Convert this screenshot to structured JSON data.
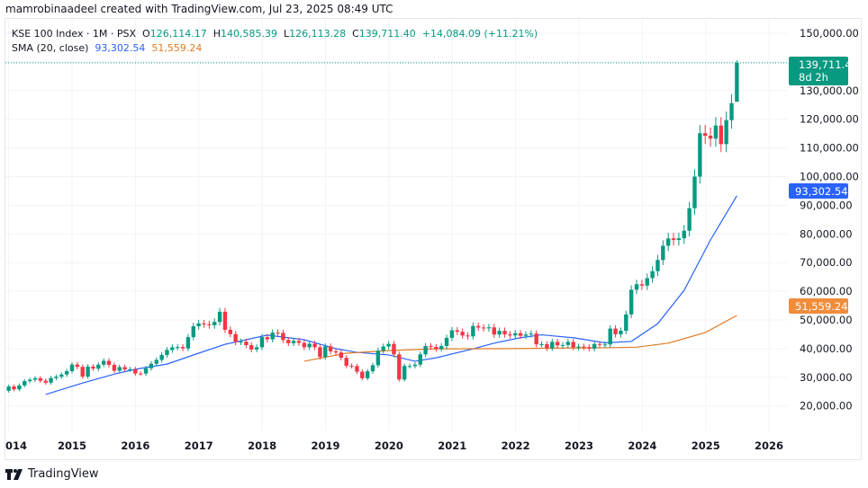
{
  "credit": "mamrobinaadeel created with TradingView.com, Jul 23, 2025 08:49 UTC",
  "legend": {
    "symbol": "KSE 100 Index · 1M · PSX",
    "o_label": "O",
    "o": "126,114.17",
    "h_label": "H",
    "h": "140,585.39",
    "l_label": "L",
    "l": "126,113.28",
    "c_label": "C",
    "c": "139,711.40",
    "change": "+14,084.09 (+11.21%)",
    "sma_label": "SMA (20, close)",
    "sma1": "93,302.54",
    "sma2": "51,559.24"
  },
  "badges": {
    "last_price": "139,711.40",
    "countdown": "8d 2h",
    "sma1": "93,302.54",
    "sma2": "51,559.24"
  },
  "logo": "TradingView",
  "colors": {
    "up": "#089981",
    "down": "#f23645",
    "sma1": "#2962ff",
    "sma2": "#e07b24",
    "grid": "#f0f3fa"
  },
  "chart_data": {
    "type": "candlestick",
    "interval": "1M",
    "start": "2014-01",
    "first_open": 25300,
    "last_candle": {
      "open": 126114.17,
      "high": 140585.39,
      "low": 126113.28,
      "close": 139711.4
    },
    "closes": [
      26784,
      25782,
      27159,
      28666,
      29143,
      29653,
      28797,
      28124,
      29727,
      30200,
      30955,
      32131,
      34444,
      33632,
      30233,
      33729,
      33011,
      34399,
      35742,
      34318,
      32288,
      33553,
      32762,
      32816,
      31313,
      31299,
      33139,
      34719,
      36061,
      37784,
      39529,
      40442,
      40542,
      40073,
      44000,
      47807,
      48781,
      48498,
      48156,
      49300,
      52876,
      46565,
      45049,
      42276,
      42425,
      41200,
      39700,
      40471,
      44000,
      43239,
      45560,
      45487,
      43000,
      41911,
      42712,
      42000,
      40500,
      41700,
      40500,
      37067,
      40800,
      39055,
      38650,
      36784,
      34000,
      33902,
      31939,
      29672,
      32079,
      34204,
      39288,
      40735,
      41631,
      37983,
      29231,
      33931,
      33931,
      34422,
      38000,
      40900,
      40600,
      39900,
      40900,
      43755,
      46385,
      45865,
      44588,
      44262,
      47896,
      47356,
      47055,
      47420,
      44900,
      46200,
      45000,
      44596,
      45374,
      44460,
      44929,
      45249,
      41500,
      41541,
      40150,
      42351,
      41129,
      41265,
      42349,
      40420,
      40700,
      40510,
      40001,
      41600,
      41300,
      41453,
      47000,
      45000,
      46233,
      51920,
      60531,
      62451,
      61979,
      64578,
      67005,
      70908,
      75878,
      78445,
      77887,
      78488,
      81114,
      88967,
      100000,
      115127,
      114256,
      113252,
      117807,
      111327,
      119700,
      125627,
      139711.4
    ],
    "sma_series": [
      {
        "name": "SMA (20, close)",
        "color": "#2962ff",
        "last": 93302.54,
        "points": [
          [
            "2014-08",
            24000
          ],
          [
            "2015-03",
            28000
          ],
          [
            "2015-09",
            31100
          ],
          [
            "2016-01",
            32800
          ],
          [
            "2016-07",
            34600
          ],
          [
            "2017-01",
            38400
          ],
          [
            "2017-06",
            41500
          ],
          [
            "2018-02",
            44700
          ],
          [
            "2018-09",
            43100
          ],
          [
            "2019-03",
            40000
          ],
          [
            "2019-07",
            38700
          ],
          [
            "2020-01",
            37800
          ],
          [
            "2020-06",
            35600
          ],
          [
            "2020-10",
            36800
          ],
          [
            "2021-05",
            39900
          ],
          [
            "2021-09",
            41900
          ],
          [
            "2022-02",
            43800
          ],
          [
            "2022-06",
            44800
          ],
          [
            "2022-12",
            43800
          ],
          [
            "2023-06",
            42000
          ],
          [
            "2023-11",
            42500
          ],
          [
            "2024-04",
            48700
          ],
          [
            "2024-09",
            60300
          ],
          [
            "2025-02",
            77900
          ],
          [
            "2025-07",
            93302.54
          ]
        ]
      },
      {
        "name": "SMA",
        "color": "#e07b24",
        "last": 51559.24,
        "points": [
          [
            "2018-09",
            35600
          ],
          [
            "2019-05",
            38400
          ],
          [
            "2020-01",
            39300
          ],
          [
            "2020-09",
            39900
          ],
          [
            "2021-12",
            40000
          ],
          [
            "2023-06",
            40300
          ],
          [
            "2023-12",
            40500
          ],
          [
            "2024-06",
            41900
          ],
          [
            "2025-01",
            45600
          ],
          [
            "2025-07",
            51559.24
          ]
        ]
      }
    ],
    "y_ticks": [
      "150,000.00",
      "130,000.00",
      "120,000.00",
      "110,000.00",
      "100,000.00",
      "90,000.00",
      "80,000.00",
      "70,000.00",
      "60,000.00",
      "50,000.00",
      "40,000.00",
      "30,000.00",
      "20,000.00"
    ],
    "y_tick_values": [
      150000,
      130000,
      120000,
      110000,
      100000,
      90000,
      80000,
      70000,
      60000,
      50000,
      40000,
      30000,
      20000
    ],
    "x_ticks": [
      "014",
      "2015",
      "2016",
      "2017",
      "2018",
      "2019",
      "2020",
      "2021",
      "2022",
      "2023",
      "2024",
      "2025",
      "2026"
    ],
    "ylim": [
      15000,
      155000
    ],
    "grid": true
  }
}
